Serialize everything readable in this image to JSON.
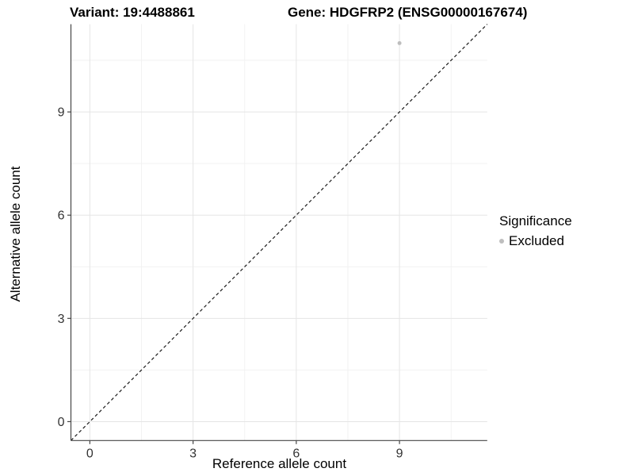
{
  "title": {
    "variant": "Variant: 19:4488861",
    "gene": "Gene: HDGFRP2 (ENSG00000167674)"
  },
  "axes": {
    "x_label": "Reference allele count",
    "y_label": "Alternative allele count"
  },
  "legend": {
    "title": "Significance",
    "items": [
      {
        "label": "Excluded",
        "color": "#bebebe"
      }
    ]
  },
  "colors": {
    "background": "#ffffff",
    "grid_major": "#e5e5e5",
    "grid_minor": "#f2f2f2",
    "axis_line": "#464646",
    "tick_label": "#333333",
    "reference_line": "#1a1a1a",
    "point": "#bebebe"
  },
  "chart_data": {
    "type": "scatter",
    "title": "Variant: 19:4488861    Gene: HDGFRP2 (ENSG00000167674)",
    "xlabel": "Reference allele count",
    "ylabel": "Alternative allele count",
    "xlim": [
      -0.55,
      11.55
    ],
    "ylim": [
      -0.55,
      11.55
    ],
    "x_ticks": [
      0,
      3,
      6,
      9
    ],
    "y_ticks": [
      0,
      3,
      6,
      9
    ],
    "x_minor_ticks": [
      1.5,
      4.5,
      7.5,
      10.5
    ],
    "y_minor_ticks": [
      1.5,
      4.5,
      7.5,
      10.5
    ],
    "grid": true,
    "legend_position": "right",
    "series": [
      {
        "name": "Excluded",
        "color": "#bebebe",
        "points": [
          {
            "x": 9,
            "y": 11
          }
        ]
      }
    ],
    "reference_line": {
      "slope": 1,
      "intercept": 0,
      "style": "dashed",
      "comment_visible_as": "y = x identity dashed line from panel corner to corner"
    }
  }
}
